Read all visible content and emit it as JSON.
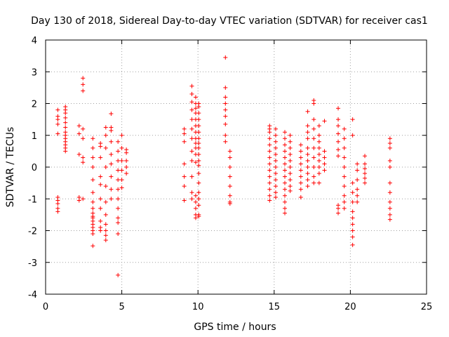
{
  "chart_data": {
    "type": "scatter",
    "title": "Day 130 of 2018, Sidereal Day-to-day VTEC variation (SDTVAR) for receiver cas1",
    "xlabel": "GPS time / hours",
    "ylabel": "SDTVAR / TECUs",
    "xlim": [
      0,
      25
    ],
    "ylim": [
      -4,
      4
    ],
    "xticks": [
      "0",
      "5",
      "10",
      "15",
      "20",
      "25"
    ],
    "yticks": [
      "-4",
      "-3",
      "-2",
      "-1",
      "0",
      "1",
      "2",
      "3",
      "4"
    ],
    "grid": true,
    "marker": "plus",
    "color": "#ff0000",
    "series": [
      {
        "name": "cas1",
        "clusters": [
          {
            "x": 0.8,
            "y": [
              1.8,
              1.6,
              1.5,
              1.35,
              1.05,
              -0.95,
              -1.05,
              -1.15,
              -1.3,
              -1.4
            ]
          },
          {
            "x": 1.3,
            "y": [
              1.9,
              1.8,
              1.7,
              1.55,
              1.4,
              1.25,
              1.1,
              1.0,
              0.9,
              0.8,
              0.7,
              0.6,
              0.5
            ]
          },
          {
            "x": 2.2,
            "y": [
              1.3,
              1.05,
              0.4,
              -0.95,
              -1.05
            ]
          },
          {
            "x": 2.45,
            "y": [
              2.8,
              2.6,
              2.4,
              1.2,
              0.9,
              0.3,
              0.15,
              -1.0
            ]
          },
          {
            "x": 3.1,
            "y": [
              0.9,
              0.6,
              0.3,
              0.0,
              -0.4,
              -0.8,
              -1.1,
              -1.3,
              -1.45,
              -1.55,
              -1.6,
              -1.7,
              -1.8,
              -1.9,
              -2.0,
              -2.1,
              -2.48
            ]
          },
          {
            "x": 3.6,
            "y": [
              0.75,
              0.65,
              0.3,
              -0.3,
              -0.55,
              -1.0,
              -1.3,
              -1.7,
              -1.9,
              -2.0
            ]
          },
          {
            "x": 3.95,
            "y": [
              1.25,
              1.0,
              0.6,
              0.0,
              -0.6,
              -1.1,
              -1.5,
              -1.8,
              -2.0,
              -2.15,
              -2.3
            ]
          },
          {
            "x": 4.3,
            "y": [
              1.68,
              1.25,
              1.15,
              0.8,
              0.4,
              0.1,
              -0.3,
              -0.7,
              -1.0
            ]
          },
          {
            "x": 4.75,
            "y": [
              0.8,
              0.5,
              0.2,
              -0.1,
              -0.4,
              -0.7,
              -1.0,
              -1.3,
              -1.6,
              -1.75,
              -2.1,
              -3.4
            ]
          },
          {
            "x": 5.0,
            "y": [
              1.0,
              0.6,
              0.2,
              -0.1,
              -0.4,
              -0.65
            ]
          },
          {
            "x": 5.3,
            "y": [
              0.55,
              0.45,
              0.2,
              0.0,
              -0.2
            ]
          },
          {
            "x": 9.1,
            "y": [
              1.2,
              1.05,
              0.8,
              0.1,
              -0.3,
              -0.6,
              -1.05
            ]
          },
          {
            "x": 9.6,
            "y": [
              2.55,
              2.3,
              2.05,
              1.8,
              1.5,
              1.2,
              0.9,
              0.5,
              0.2,
              -0.3,
              -0.8,
              -1.0
            ]
          },
          {
            "x": 9.85,
            "y": [
              2.2,
              2.0,
              1.85,
              1.7,
              1.5,
              1.3,
              1.1,
              0.9,
              0.75,
              0.6,
              0.4,
              0.15,
              -0.9,
              -1.1,
              -1.3,
              -1.5,
              -1.6
            ]
          },
          {
            "x": 10.05,
            "y": [
              2.0,
              1.9,
              1.7,
              1.5,
              1.3,
              1.1,
              0.9,
              0.75,
              0.6,
              0.4,
              0.2,
              0.05,
              -0.2,
              -0.5,
              -0.8,
              -1.0,
              -1.2,
              -1.5,
              -1.55
            ]
          },
          {
            "x": 11.8,
            "y": [
              3.45,
              2.5,
              2.2,
              2.0,
              1.8,
              1.6,
              1.35,
              1.0,
              0.8
            ]
          },
          {
            "x": 12.1,
            "y": [
              0.5,
              0.3,
              0.0,
              -0.3,
              -0.6,
              -0.9,
              -1.1,
              -1.15
            ]
          },
          {
            "x": 14.7,
            "y": [
              1.3,
              1.2,
              1.1,
              0.9,
              0.7,
              0.5,
              0.3,
              0.1,
              -0.1,
              -0.3,
              -0.5,
              -0.7,
              -0.9,
              -1.05
            ]
          },
          {
            "x": 15.1,
            "y": [
              1.2,
              1.0,
              0.8,
              0.6,
              0.4,
              0.2,
              0.0,
              -0.2,
              -0.4,
              -0.6,
              -0.8,
              -0.95
            ]
          },
          {
            "x": 15.7,
            "y": [
              1.1,
              0.9,
              0.7,
              0.5,
              0.3,
              0.1,
              -0.1,
              -0.3,
              -0.5,
              -0.7,
              -0.9,
              -1.1,
              -1.3,
              -1.45
            ]
          },
          {
            "x": 16.05,
            "y": [
              1.0,
              0.8,
              0.6,
              0.4,
              0.2,
              0.0,
              -0.2,
              -0.4,
              -0.6,
              -0.75
            ]
          },
          {
            "x": 16.75,
            "y": [
              0.7,
              0.5,
              0.3,
              0.1,
              -0.1,
              -0.3,
              -0.5,
              -0.7,
              -0.95
            ]
          },
          {
            "x": 17.2,
            "y": [
              1.75,
              1.3,
              1.1,
              0.9,
              0.6,
              0.4,
              0.2,
              0.0,
              -0.2,
              -0.4,
              -0.6
            ]
          },
          {
            "x": 17.6,
            "y": [
              2.1,
              2.0,
              1.5,
              1.2,
              0.9,
              0.6,
              0.3,
              0.0,
              -0.3,
              -0.5
            ]
          },
          {
            "x": 17.95,
            "y": [
              1.3,
              1.0,
              0.8,
              0.6,
              0.4,
              0.2,
              0.0,
              -0.2,
              -0.5
            ]
          },
          {
            "x": 18.3,
            "y": [
              1.45,
              0.5,
              0.3,
              0.1,
              -0.1
            ]
          },
          {
            "x": 19.2,
            "y": [
              1.85,
              1.5,
              1.3,
              1.05,
              0.8,
              0.55,
              0.35,
              -1.2,
              -1.3,
              -1.45
            ]
          },
          {
            "x": 19.6,
            "y": [
              1.2,
              0.9,
              0.6,
              0.3,
              0.0,
              -0.3,
              -0.6,
              -0.9,
              -1.1,
              -1.3
            ]
          },
          {
            "x": 20.15,
            "y": [
              1.5,
              1.0,
              -0.5,
              -0.8,
              -1.1,
              -1.4,
              -1.6,
              -1.8,
              -2.0,
              -2.2,
              -2.45
            ]
          },
          {
            "x": 20.45,
            "y": [
              0.1,
              -0.1,
              -0.4,
              -0.7,
              -0.9,
              -1.1
            ]
          },
          {
            "x": 20.95,
            "y": [
              0.35,
              0.1,
              -0.05,
              -0.2,
              -0.35,
              -0.5
            ]
          },
          {
            "x": 22.6,
            "y": [
              0.9,
              0.75,
              0.6,
              0.2,
              0.0,
              -0.5,
              -0.8,
              -1.1,
              -1.3,
              -1.5,
              -1.65
            ]
          }
        ]
      }
    ]
  }
}
